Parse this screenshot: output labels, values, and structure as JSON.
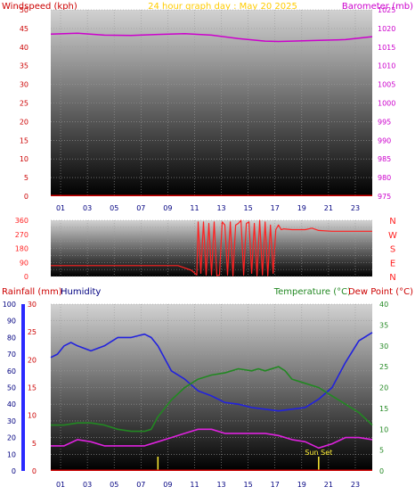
{
  "colors": {
    "wind": "#cc0000",
    "baro": "#cc00cc",
    "title": "#ffcc00",
    "dir": "#ff2222",
    "humidity": "#2222dd",
    "temp": "#228822",
    "dew": "#dd22dd",
    "rain_axis": "#2a2aff",
    "sunset": "#ffee33"
  },
  "chart_data": [
    {
      "type": "line",
      "title": "24 hour graph day : May 20 2025",
      "ylabel": "Windspeed (kph)",
      "y2label": "Barometer (mb)",
      "x_ticks": [
        "01",
        "03",
        "05",
        "07",
        "09",
        "11",
        "13",
        "15",
        "17",
        "19",
        "21",
        "23"
      ],
      "ylim": [
        0,
        50
      ],
      "y_ticks": [
        0,
        5,
        10,
        15,
        20,
        25,
        30,
        35,
        40,
        45,
        50
      ],
      "y2lim": [
        975,
        1025
      ],
      "y2_ticks": [
        975,
        980,
        985,
        990,
        995,
        1000,
        1005,
        1010,
        1015,
        1020,
        1025
      ],
      "grid": true,
      "series": [
        {
          "axis": "left",
          "color_key": "wind",
          "x": [
            0,
            24
          ],
          "values": [
            0,
            0
          ]
        },
        {
          "axis": "right",
          "color_key": "baro",
          "x": [
            0,
            2,
            4,
            6,
            8,
            10,
            12,
            14,
            16,
            17,
            18,
            20,
            22,
            24
          ],
          "values": [
            1018.5,
            1018.7,
            1018.2,
            1018.1,
            1018.4,
            1018.6,
            1018.2,
            1017.3,
            1016.6,
            1016.5,
            1016.6,
            1016.8,
            1017.0,
            1017.8
          ]
        }
      ]
    },
    {
      "type": "line",
      "ylim": [
        0,
        360
      ],
      "y_ticks": [
        0,
        45,
        90,
        135,
        180,
        225,
        270,
        315,
        360
      ],
      "y_ticks_labeled": [
        0,
        90,
        180,
        270,
        360
      ],
      "direction_labels": [
        "N",
        "W",
        "S",
        "E",
        "N"
      ],
      "grid": true,
      "series": [
        {
          "color_key": "dir",
          "x": [
            0,
            8,
            9.5,
            10.5,
            10.9,
            11,
            11.2,
            11.4,
            11.6,
            11.8,
            12,
            12.2,
            12.4,
            12.6,
            12.8,
            13,
            13.2,
            13.4,
            13.6,
            13.8,
            14,
            14.2,
            14.4,
            14.6,
            14.8,
            15,
            15.2,
            15.4,
            15.6,
            15.8,
            16,
            16.2,
            16.4,
            16.6,
            16.8,
            17,
            17.2,
            17.4,
            18,
            19,
            19.5,
            20,
            21,
            22,
            24
          ],
          "values": [
            70,
            70,
            70,
            40,
            10,
            350,
            20,
            350,
            10,
            340,
            10,
            350,
            5,
            10,
            350,
            330,
            10,
            350,
            5,
            330,
            340,
            360,
            10,
            340,
            350,
            20,
            340,
            5,
            360,
            10,
            350,
            5,
            330,
            20,
            300,
            330,
            300,
            305,
            300,
            300,
            310,
            295,
            290,
            290,
            290
          ]
        }
      ]
    },
    {
      "type": "line",
      "ylabel_rain": "Rainfall (mm)",
      "ylabel_humidity": "Humidity",
      "y2label_temp": "Temperature (°C)",
      "y2label_dew": "Dew Point (°C)",
      "x_ticks": [
        "01",
        "03",
        "05",
        "07",
        "09",
        "11",
        "13",
        "15",
        "17",
        "19",
        "21",
        "23"
      ],
      "humidity_ylim": [
        0,
        100
      ],
      "humidity_ticks": [
        0,
        10,
        20,
        30,
        40,
        50,
        60,
        70,
        80,
        90,
        100
      ],
      "rain_ylim": [
        0,
        30
      ],
      "rain_ticks": [
        0,
        5,
        10,
        15,
        20,
        25,
        30
      ],
      "temp_ylim": [
        0,
        40
      ],
      "temp_ticks": [
        0,
        5,
        10,
        15,
        20,
        25,
        30,
        35,
        40
      ],
      "annotation": {
        "text": "Sun Set",
        "x": 20
      },
      "event_markers_x": [
        8,
        20
      ],
      "grid": true,
      "series": [
        {
          "axis": "humidity",
          "color_key": "humidity",
          "x": [
            0,
            0.5,
            1,
            1.5,
            2,
            3,
            4,
            5,
            6,
            6.5,
            7,
            7.5,
            8,
            9,
            10,
            11,
            12,
            13,
            14,
            15,
            16,
            17,
            18,
            19,
            20,
            21,
            22,
            23,
            24
          ],
          "values": [
            68,
            70,
            75,
            77,
            75,
            72,
            75,
            80,
            80,
            81,
            82,
            80,
            75,
            60,
            55,
            48,
            45,
            41,
            40,
            38,
            37,
            36,
            37,
            38,
            43,
            50,
            65,
            78,
            83
          ]
        },
        {
          "axis": "temp",
          "color_key": "temp",
          "x": [
            0,
            1,
            2,
            3,
            4,
            5,
            6,
            7,
            7.5,
            8,
            9,
            10,
            11,
            12,
            13,
            14,
            15,
            15.5,
            16,
            17,
            17.5,
            18,
            19,
            20,
            21,
            22,
            23,
            24
          ],
          "values": [
            11,
            11,
            11.5,
            11.5,
            11,
            10,
            9.5,
            9.5,
            10,
            13,
            17,
            20,
            22,
            23,
            23.5,
            24.5,
            24,
            24.5,
            24,
            25,
            24,
            22,
            21,
            20,
            18,
            16,
            14,
            11
          ]
        },
        {
          "axis": "temp",
          "color_key": "dew",
          "x": [
            0,
            1,
            2,
            3,
            4,
            5,
            6,
            7,
            8,
            9,
            10,
            11,
            12,
            13,
            14,
            15,
            16,
            17,
            18,
            19,
            20,
            21,
            22,
            23,
            24
          ],
          "values": [
            6,
            6,
            7.5,
            7,
            6,
            6,
            6,
            6,
            7,
            8,
            9,
            10,
            10,
            9,
            9,
            9,
            9,
            8.5,
            7.5,
            7,
            5.5,
            6.5,
            8,
            8,
            7.5
          ]
        },
        {
          "axis": "rain",
          "color_key": "wind",
          "x": [
            0,
            24
          ],
          "values": [
            0,
            0
          ]
        }
      ]
    }
  ]
}
